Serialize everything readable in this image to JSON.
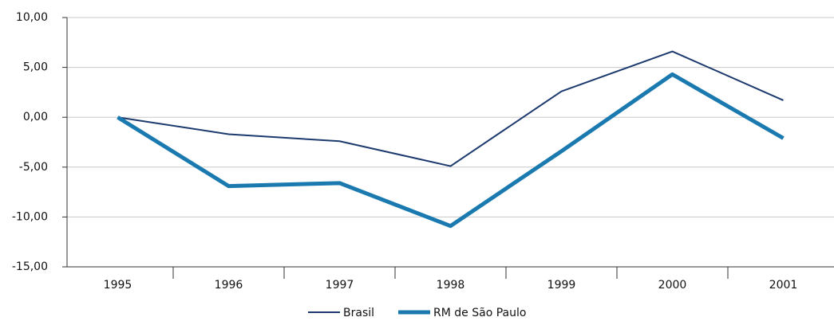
{
  "chart_data": {
    "type": "line",
    "categories": [
      "1995",
      "1996",
      "1997",
      "1998",
      "1999",
      "2000",
      "2001"
    ],
    "series": [
      {
        "name": "Brasil",
        "color": "#1c3a6e",
        "values": [
          0,
          -1.7,
          -2.4,
          -4.9,
          2.6,
          6.6,
          1.7
        ]
      },
      {
        "name": "RM de São Paulo",
        "color": "#1a7ab0",
        "values": [
          0,
          -6.9,
          -6.6,
          -10.9,
          -3.4,
          4.3,
          -2.1
        ]
      }
    ],
    "ylim": [
      -15,
      10
    ],
    "yticks": [
      {
        "value": -15,
        "label": "-15,00"
      },
      {
        "value": -10,
        "label": "-10,00"
      },
      {
        "value": -5,
        "label": "-5,00"
      },
      {
        "value": 0,
        "label": "0,00"
      },
      {
        "value": 5,
        "label": "5,00"
      },
      {
        "value": 10,
        "label": "10,00"
      }
    ],
    "grid": true,
    "legend": "bottom"
  }
}
